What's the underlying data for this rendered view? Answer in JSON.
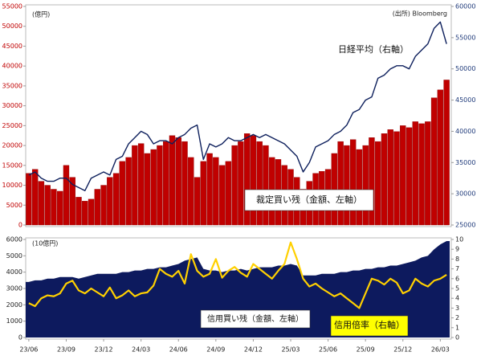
{
  "chart_data": [
    {
      "type": "combo",
      "annotations": [
        "(億円)",
        "(出所) Bloomberg",
        "日経平均（右軸）",
        "裁定買い残（金額、左軸）"
      ],
      "ylim": [
        0,
        55000
      ],
      "yticks": [
        0,
        5000,
        10000,
        15000,
        20000,
        25000,
        30000,
        35000,
        40000,
        45000,
        50000,
        55000
      ],
      "ytick_color": "#c00000",
      "y2lim": [
        25000,
        60000
      ],
      "y2ticks": [
        25000,
        30000,
        35000,
        40000,
        45000,
        50000,
        55000,
        60000
      ],
      "y2tick_color": "#1f3a7a",
      "series": [
        {
          "name": "裁定買い残（金額、左軸）",
          "type": "bar",
          "color": "#c00000",
          "values": [
            13000,
            14000,
            11000,
            10000,
            9000,
            8500,
            15000,
            12000,
            7000,
            6000,
            6500,
            9000,
            10000,
            12000,
            13000,
            16000,
            17000,
            20000,
            20500,
            18000,
            19000,
            20000,
            21000,
            22500,
            22000,
            21000,
            17000,
            12000,
            16000,
            18000,
            17000,
            15000,
            16000,
            20000,
            21000,
            23000,
            22500,
            21000,
            20000,
            17000,
            16500,
            15000,
            14000,
            12000,
            9000,
            11000,
            13000,
            13500,
            14000,
            18000,
            21000,
            20000,
            21500,
            19000,
            20000,
            22000,
            21000,
            23000,
            24000,
            23500,
            25000,
            24500,
            26000,
            25500,
            26000,
            32000,
            34000,
            36500
          ]
        },
        {
          "name": "日経平均（右軸）",
          "type": "line",
          "axis": "y2",
          "color": "#0d1f5c",
          "values": [
            33000,
            33500,
            32500,
            32000,
            32000,
            32500,
            32500,
            31500,
            31000,
            30500,
            32500,
            33000,
            33500,
            33000,
            35500,
            36000,
            38000,
            39000,
            40000,
            39500,
            38000,
            38500,
            38500,
            38000,
            39000,
            39500,
            40500,
            41000,
            35500,
            38000,
            37500,
            38000,
            39000,
            38500,
            38500,
            39000,
            39500,
            39000,
            39500,
            39000,
            38500,
            38000,
            37000,
            36000,
            33500,
            35000,
            37500,
            38000,
            38500,
            39500,
            40000,
            41000,
            43000,
            43500,
            45000,
            45500,
            48500,
            49000,
            50000,
            50500,
            50500,
            50000,
            52000,
            53000,
            54000,
            56500,
            57500,
            54000
          ]
        }
      ]
    },
    {
      "type": "combo",
      "annotations": [
        "(10億円)",
        "信用買い残（金額、左軸）",
        "信用倍率（右軸）"
      ],
      "x": [
        "23/06",
        null,
        null,
        null,
        null,
        null,
        "23/09",
        null,
        null,
        null,
        null,
        null,
        "23/12",
        null,
        null,
        null,
        null,
        null,
        "24/03",
        null,
        null,
        null,
        null,
        null,
        "24/06",
        null,
        null,
        null,
        null,
        null,
        "24/09",
        null,
        null,
        null,
        null,
        null,
        "24/12",
        null,
        null,
        null,
        null,
        null,
        "25/03",
        null,
        null,
        null,
        null,
        null,
        "25/06",
        null,
        null,
        null,
        null,
        null,
        "25/09",
        null,
        null,
        null,
        null,
        null,
        "25/12",
        null,
        null,
        null,
        null,
        null,
        "26/03",
        null
      ],
      "ylim": [
        0,
        6000
      ],
      "yticks": [
        0,
        1000,
        2000,
        3000,
        4000,
        5000,
        6000
      ],
      "y2lim": [
        0,
        10
      ],
      "y2ticks": [
        0,
        1,
        2,
        3,
        4,
        5,
        6,
        7,
        8,
        9,
        10
      ],
      "series": [
        {
          "name": "信用買い残（金額、左軸）",
          "type": "area",
          "color": "#0d1a5e",
          "values": [
            3400,
            3500,
            3500,
            3600,
            3600,
            3700,
            3700,
            3700,
            3600,
            3700,
            3800,
            3900,
            3900,
            3900,
            3900,
            4000,
            4000,
            4100,
            4100,
            4200,
            4200,
            4300,
            4300,
            4400,
            4500,
            4700,
            4800,
            4900,
            4200,
            4100,
            4100,
            4000,
            4100,
            4100,
            4200,
            4100,
            4200,
            4300,
            4300,
            4300,
            4400,
            4400,
            4500,
            4400,
            3800,
            3800,
            3800,
            3900,
            3900,
            3900,
            4000,
            4000,
            4100,
            4100,
            4200,
            4200,
            4300,
            4300,
            4400,
            4400,
            4500,
            4600,
            4700,
            4900,
            5000,
            5400,
            5700,
            5900
          ]
        },
        {
          "name": "信用倍率（右軸）",
          "type": "line",
          "axis": "y2",
          "color": "#ffd000",
          "values": [
            3.5,
            3.2,
            4.0,
            4.3,
            4.2,
            4.5,
            5.5,
            5.8,
            4.8,
            4.5,
            5.0,
            4.6,
            4.2,
            5.1,
            4.0,
            4.3,
            4.8,
            4.2,
            4.5,
            4.6,
            5.3,
            7.0,
            6.5,
            6.2,
            6.8,
            5.5,
            8.5,
            6.8,
            6.2,
            6.5,
            8.0,
            6.1,
            6.8,
            7.2,
            6.6,
            6.2,
            7.5,
            7.0,
            6.5,
            6.0,
            6.8,
            7.5,
            9.7,
            8.0,
            6.0,
            5.2,
            5.5,
            5.0,
            4.6,
            4.2,
            4.5,
            4.0,
            3.5,
            3.0,
            4.5,
            6.0,
            5.8,
            5.4,
            6.0,
            5.6,
            4.5,
            4.8,
            6.0,
            5.5,
            5.2,
            5.8,
            6.0,
            6.4
          ]
        }
      ]
    }
  ]
}
